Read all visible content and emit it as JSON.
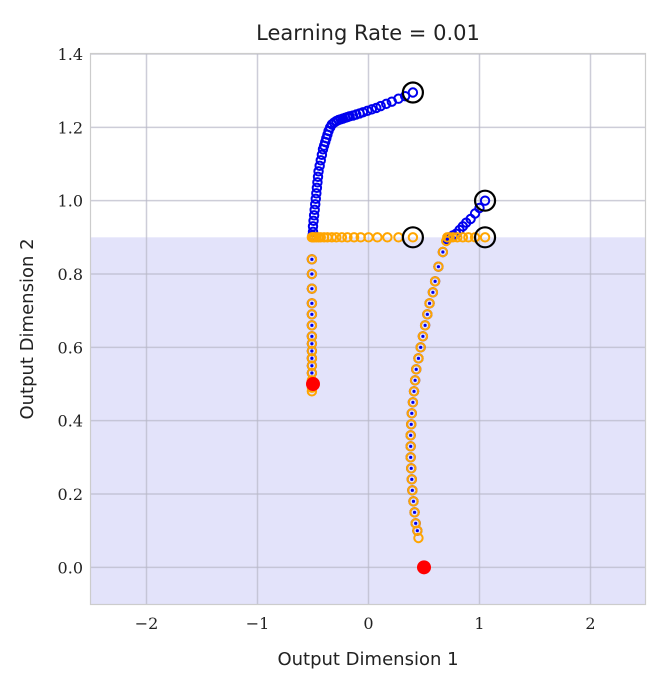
{
  "chart_data": {
    "type": "scatter",
    "title": "Learning Rate = 0.01",
    "xlabel": "Output Dimension 1",
    "ylabel": "Output Dimension 2",
    "xlim": [
      -2.5,
      2.5
    ],
    "ylim": [
      -0.1,
      1.4
    ],
    "xticks": [
      -2,
      -1,
      0,
      1,
      2
    ],
    "xtick_labels": [
      "−2",
      "−1",
      "0",
      "1",
      "2"
    ],
    "yticks": [
      0.0,
      0.2,
      0.4,
      0.6,
      0.8,
      1.0,
      1.2,
      1.4
    ],
    "ytick_labels": [
      "0.0",
      "0.2",
      "0.4",
      "0.6",
      "0.8",
      "1.0",
      "1.2",
      "1.4"
    ],
    "grid": true,
    "shaded_region": {
      "y_below": 0.9,
      "color": "#e3e3fa"
    },
    "colors": {
      "blue": "#0000ee",
      "orange": "#ffa500",
      "red": "#ff0000",
      "start_marker": "#000000"
    },
    "series": [
      {
        "color": "blue",
        "marker": "hollow-circle",
        "points": [
          [
            0.4,
            1.295
          ],
          [
            0.33,
            1.285
          ],
          [
            0.27,
            1.278
          ],
          [
            0.21,
            1.27
          ],
          [
            0.16,
            1.264
          ],
          [
            0.11,
            1.258
          ],
          [
            0.07,
            1.253
          ],
          [
            0.03,
            1.249
          ],
          [
            -0.01,
            1.245
          ],
          [
            -0.05,
            1.241
          ],
          [
            -0.08,
            1.238
          ],
          [
            -0.11,
            1.235
          ],
          [
            -0.14,
            1.232
          ],
          [
            -0.17,
            1.23
          ],
          [
            -0.19,
            1.228
          ],
          [
            -0.21,
            1.226
          ],
          [
            -0.23,
            1.224
          ],
          [
            -0.25,
            1.222
          ],
          [
            -0.27,
            1.22
          ],
          [
            -0.29,
            1.217
          ],
          [
            -0.31,
            1.213
          ],
          [
            -0.33,
            1.208
          ],
          [
            -0.345,
            1.2
          ],
          [
            -0.36,
            1.19
          ],
          [
            -0.37,
            1.18
          ],
          [
            -0.38,
            1.17
          ],
          [
            -0.39,
            1.16
          ],
          [
            -0.4,
            1.15
          ],
          [
            -0.41,
            1.14
          ],
          [
            -0.42,
            1.125
          ],
          [
            -0.43,
            1.11
          ],
          [
            -0.44,
            1.095
          ],
          [
            -0.45,
            1.08
          ],
          [
            -0.455,
            1.065
          ],
          [
            -0.46,
            1.05
          ],
          [
            -0.465,
            1.035
          ],
          [
            -0.47,
            1.02
          ],
          [
            -0.475,
            1.005
          ],
          [
            -0.48,
            0.99
          ],
          [
            -0.485,
            0.975
          ],
          [
            -0.49,
            0.96
          ],
          [
            -0.495,
            0.945
          ],
          [
            -0.5,
            0.93
          ],
          [
            -0.5,
            0.915
          ],
          [
            -0.505,
            0.905
          ],
          [
            -0.51,
            0.84
          ],
          [
            -0.51,
            0.8
          ],
          [
            -0.51,
            0.76
          ],
          [
            -0.51,
            0.72
          ],
          [
            -0.51,
            0.69
          ],
          [
            -0.51,
            0.66
          ],
          [
            -0.51,
            0.63
          ],
          [
            -0.51,
            0.61
          ],
          [
            -0.51,
            0.59
          ],
          [
            -0.51,
            0.57
          ],
          [
            -0.51,
            0.55
          ],
          [
            -0.51,
            0.53
          ]
        ]
      },
      {
        "color": "orange",
        "marker": "hollow-circle",
        "points": [
          [
            0.4,
            0.9
          ],
          [
            0.27,
            0.9
          ],
          [
            0.17,
            0.9
          ],
          [
            0.08,
            0.9
          ],
          [
            0.0,
            0.9
          ],
          [
            -0.07,
            0.9
          ],
          [
            -0.13,
            0.9
          ],
          [
            -0.19,
            0.9
          ],
          [
            -0.24,
            0.9
          ],
          [
            -0.29,
            0.9
          ],
          [
            -0.33,
            0.9
          ],
          [
            -0.37,
            0.9
          ],
          [
            -0.4,
            0.9
          ],
          [
            -0.43,
            0.9
          ],
          [
            -0.45,
            0.9
          ],
          [
            -0.47,
            0.9
          ],
          [
            -0.49,
            0.9
          ],
          [
            -0.5,
            0.9
          ],
          [
            -0.51,
            0.9
          ],
          [
            -0.51,
            0.84
          ],
          [
            -0.51,
            0.8
          ],
          [
            -0.51,
            0.76
          ],
          [
            -0.51,
            0.72
          ],
          [
            -0.51,
            0.69
          ],
          [
            -0.51,
            0.66
          ],
          [
            -0.51,
            0.63
          ],
          [
            -0.51,
            0.61
          ],
          [
            -0.51,
            0.59
          ],
          [
            -0.51,
            0.57
          ],
          [
            -0.51,
            0.55
          ],
          [
            -0.51,
            0.53
          ],
          [
            -0.51,
            0.51
          ],
          [
            -0.51,
            0.5
          ],
          [
            -0.51,
            0.49
          ],
          [
            -0.51,
            0.48
          ]
        ]
      },
      {
        "color": "blue",
        "marker": "hollow-circle",
        "points": [
          [
            1.05,
            1.0
          ],
          [
            1.0,
            0.98
          ],
          [
            0.96,
            0.965
          ],
          [
            0.92,
            0.95
          ],
          [
            0.88,
            0.94
          ],
          [
            0.85,
            0.93
          ],
          [
            0.82,
            0.92
          ],
          [
            0.79,
            0.91
          ],
          [
            0.76,
            0.905
          ],
          [
            0.73,
            0.9
          ],
          [
            0.71,
            0.895
          ],
          [
            0.67,
            0.86
          ],
          [
            0.63,
            0.82
          ],
          [
            0.6,
            0.78
          ],
          [
            0.58,
            0.75
          ],
          [
            0.55,
            0.72
          ],
          [
            0.53,
            0.69
          ],
          [
            0.51,
            0.66
          ],
          [
            0.49,
            0.63
          ],
          [
            0.47,
            0.6
          ],
          [
            0.45,
            0.57
          ],
          [
            0.43,
            0.54
          ],
          [
            0.42,
            0.51
          ],
          [
            0.41,
            0.48
          ],
          [
            0.4,
            0.45
          ],
          [
            0.39,
            0.42
          ],
          [
            0.385,
            0.39
          ],
          [
            0.38,
            0.36
          ],
          [
            0.38,
            0.33
          ],
          [
            0.38,
            0.3
          ],
          [
            0.385,
            0.27
          ],
          [
            0.39,
            0.24
          ],
          [
            0.395,
            0.21
          ],
          [
            0.405,
            0.18
          ],
          [
            0.415,
            0.15
          ],
          [
            0.425,
            0.12
          ],
          [
            0.44,
            0.1
          ]
        ]
      },
      {
        "color": "orange",
        "marker": "hollow-circle",
        "points": [
          [
            1.05,
            0.9
          ],
          [
            0.96,
            0.9
          ],
          [
            0.9,
            0.9
          ],
          [
            0.85,
            0.9
          ],
          [
            0.8,
            0.9
          ],
          [
            0.76,
            0.9
          ],
          [
            0.73,
            0.9
          ],
          [
            0.71,
            0.9
          ],
          [
            0.7,
            0.89
          ],
          [
            0.67,
            0.86
          ],
          [
            0.63,
            0.82
          ],
          [
            0.6,
            0.78
          ],
          [
            0.58,
            0.75
          ],
          [
            0.55,
            0.72
          ],
          [
            0.53,
            0.69
          ],
          [
            0.51,
            0.66
          ],
          [
            0.49,
            0.63
          ],
          [
            0.47,
            0.6
          ],
          [
            0.45,
            0.57
          ],
          [
            0.43,
            0.54
          ],
          [
            0.42,
            0.51
          ],
          [
            0.41,
            0.48
          ],
          [
            0.4,
            0.45
          ],
          [
            0.39,
            0.42
          ],
          [
            0.385,
            0.39
          ],
          [
            0.38,
            0.36
          ],
          [
            0.38,
            0.33
          ],
          [
            0.38,
            0.3
          ],
          [
            0.385,
            0.27
          ],
          [
            0.39,
            0.24
          ],
          [
            0.395,
            0.21
          ],
          [
            0.405,
            0.18
          ],
          [
            0.415,
            0.15
          ],
          [
            0.425,
            0.12
          ],
          [
            0.44,
            0.1
          ],
          [
            0.45,
            0.08
          ]
        ]
      }
    ],
    "start_points": [
      [
        0.4,
        1.295
      ],
      [
        0.4,
        0.9
      ],
      [
        1.05,
        1.0
      ],
      [
        1.05,
        0.9
      ]
    ],
    "target_points": [
      [
        -0.5,
        0.5
      ],
      [
        0.5,
        0.0
      ]
    ]
  }
}
